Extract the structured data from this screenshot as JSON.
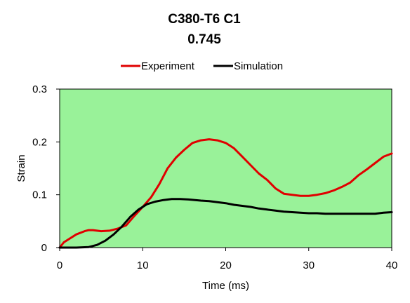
{
  "chart_data": {
    "type": "line",
    "title": "C380-T6 C1",
    "subtitle": "0.745",
    "xlabel": "Time (ms)",
    "ylabel": "Strain",
    "xlim": [
      0,
      40
    ],
    "ylim": [
      0,
      0.3
    ],
    "x_ticks": [
      "0",
      "10",
      "20",
      "30",
      "40"
    ],
    "y_ticks": [
      "0",
      "0.1",
      "0.2",
      "0.3"
    ],
    "x_tick_values": [
      0,
      10,
      20,
      30,
      40
    ],
    "y_tick_values": [
      0,
      0.1,
      0.2,
      0.3
    ],
    "grid": false,
    "legend_position": "top",
    "plot_background": "#99f299",
    "series": [
      {
        "name": "Experiment",
        "color": "#e00000",
        "points": [
          [
            0,
            0.0
          ],
          [
            0.5,
            0.01
          ],
          [
            1,
            0.015
          ],
          [
            2,
            0.025
          ],
          [
            3,
            0.031
          ],
          [
            3.5,
            0.033
          ],
          [
            4,
            0.033
          ],
          [
            5,
            0.031
          ],
          [
            6,
            0.032
          ],
          [
            7,
            0.036
          ],
          [
            8,
            0.042
          ],
          [
            9,
            0.06
          ],
          [
            10,
            0.077
          ],
          [
            11,
            0.095
          ],
          [
            12,
            0.12
          ],
          [
            13,
            0.15
          ],
          [
            14,
            0.17
          ],
          [
            15,
            0.185
          ],
          [
            16,
            0.198
          ],
          [
            17,
            0.203
          ],
          [
            18,
            0.205
          ],
          [
            19,
            0.203
          ],
          [
            20,
            0.198
          ],
          [
            21,
            0.188
          ],
          [
            22,
            0.172
          ],
          [
            23,
            0.156
          ],
          [
            24,
            0.14
          ],
          [
            25,
            0.128
          ],
          [
            26,
            0.112
          ],
          [
            27,
            0.102
          ],
          [
            28,
            0.1
          ],
          [
            29,
            0.098
          ],
          [
            30,
            0.098
          ],
          [
            31,
            0.1
          ],
          [
            32,
            0.103
          ],
          [
            33,
            0.108
          ],
          [
            34,
            0.115
          ],
          [
            35,
            0.123
          ],
          [
            36,
            0.137
          ],
          [
            37,
            0.148
          ],
          [
            38,
            0.16
          ],
          [
            39,
            0.172
          ],
          [
            40,
            0.178
          ]
        ]
      },
      {
        "name": "Simulation",
        "color": "#000000",
        "points": [
          [
            0,
            0.0
          ],
          [
            2,
            0.0
          ],
          [
            3.5,
            0.001
          ],
          [
            4.5,
            0.005
          ],
          [
            5.5,
            0.013
          ],
          [
            6.5,
            0.025
          ],
          [
            7.5,
            0.04
          ],
          [
            8.5,
            0.058
          ],
          [
            9.5,
            0.072
          ],
          [
            10.5,
            0.082
          ],
          [
            11.5,
            0.087
          ],
          [
            12.5,
            0.09
          ],
          [
            13.5,
            0.092
          ],
          [
            14.5,
            0.092
          ],
          [
            15.5,
            0.091
          ],
          [
            17,
            0.089
          ],
          [
            18,
            0.088
          ],
          [
            19,
            0.086
          ],
          [
            20,
            0.084
          ],
          [
            21,
            0.081
          ],
          [
            22,
            0.079
          ],
          [
            23,
            0.077
          ],
          [
            24,
            0.074
          ],
          [
            25,
            0.072
          ],
          [
            26,
            0.07
          ],
          [
            27,
            0.068
          ],
          [
            28,
            0.067
          ],
          [
            29,
            0.066
          ],
          [
            30,
            0.065
          ],
          [
            31,
            0.065
          ],
          [
            32,
            0.064
          ],
          [
            33,
            0.064
          ],
          [
            34,
            0.064
          ],
          [
            35,
            0.064
          ],
          [
            36,
            0.064
          ],
          [
            37,
            0.064
          ],
          [
            38,
            0.064
          ],
          [
            39,
            0.066
          ],
          [
            40,
            0.067
          ]
        ]
      }
    ]
  }
}
